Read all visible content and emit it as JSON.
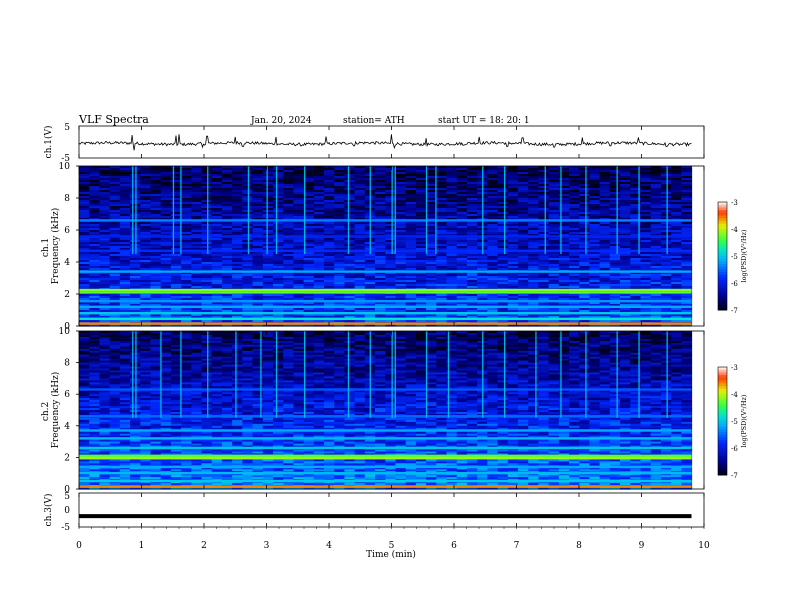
{
  "header": {
    "title": "VLF  Spectra",
    "date": "Jan.  20,  2024",
    "station": "station= ATH",
    "start": "start  UT  =    18: 20: 1"
  },
  "chart_data": [
    {
      "type": "line",
      "name": "ch1-waveform",
      "ylabel": "ch.1(V)",
      "ylim": [
        -5,
        5
      ],
      "yticks": [
        "5",
        "-5"
      ],
      "xlim": [
        0,
        10
      ],
      "baseline": -0.5,
      "spikes": [
        [
          0.85,
          2.2
        ],
        [
          0.88,
          -2.6
        ],
        [
          1.55,
          2.0
        ],
        [
          1.6,
          2.4
        ],
        [
          1.98,
          -1.6
        ],
        [
          2.05,
          1.8
        ],
        [
          2.5,
          1.6
        ],
        [
          2.62,
          -1.4
        ],
        [
          3.15,
          1.6
        ],
        [
          3.55,
          -1.2
        ],
        [
          3.95,
          1.7
        ],
        [
          4.4,
          -1.2
        ],
        [
          5.0,
          2.4
        ],
        [
          5.05,
          -1.8
        ],
        [
          5.55,
          1.2
        ],
        [
          6.15,
          -1.0
        ],
        [
          6.4,
          1.6
        ],
        [
          6.85,
          -1.4
        ],
        [
          7.1,
          1.3
        ],
        [
          7.6,
          -1.6
        ],
        [
          8.05,
          1.4
        ],
        [
          8.5,
          -1.2
        ],
        [
          8.95,
          1.4
        ],
        [
          9.4,
          -1.4
        ]
      ]
    },
    {
      "type": "heatmap",
      "name": "ch1-spectrogram",
      "ylabel": "ch.1\nFrequency  (kHz)",
      "ylim": [
        0,
        10
      ],
      "yticks": [
        "10",
        "8",
        "6",
        "4",
        "2",
        "0"
      ],
      "xlim": [
        0,
        9.8
      ],
      "colorbar": {
        "label": "log(PSD)(V²/Hz)",
        "ticks": [
          "-3",
          "-4",
          "-5",
          "-6",
          "-7"
        ],
        "range": [
          -7,
          -3
        ]
      },
      "bands": [
        {
          "f": 0.15,
          "level": -3.6
        },
        {
          "f": 0.45,
          "level": -4.8
        },
        {
          "f": 0.8,
          "level": -5.0
        },
        {
          "f": 1.2,
          "level": -5.2
        },
        {
          "f": 1.55,
          "level": -5.3
        },
        {
          "f": 2.1,
          "level": -4.3
        },
        {
          "f": 2.25,
          "level": -4.2
        },
        {
          "f": 3.4,
          "level": -5.2
        },
        {
          "f": 4.7,
          "level": -5.8
        },
        {
          "f": 5.6,
          "level": -5.9
        },
        {
          "f": 6.6,
          "level": -5.4
        }
      ],
      "background": {
        "low_freq_level": -5.7,
        "high_freq_level": -6.7
      },
      "sferic_times": [
        0.85,
        0.9,
        1.5,
        1.62,
        2.05,
        2.7,
        3.0,
        3.15,
        3.6,
        4.3,
        4.65,
        5.0,
        5.05,
        5.55,
        5.7,
        6.45,
        6.8,
        7.45,
        7.7,
        8.1,
        8.6,
        8.95,
        9.4
      ]
    },
    {
      "type": "heatmap",
      "name": "ch2-spectrogram",
      "ylabel": "ch.2\nFrequency  (kHz)",
      "ylim": [
        0,
        10
      ],
      "yticks": [
        "10",
        "8",
        "6",
        "4",
        "2",
        "0"
      ],
      "xlim": [
        0,
        9.8
      ],
      "colorbar": {
        "label": "log(PSD)(V²/Hz)",
        "ticks": [
          "-3",
          "-4",
          "-5",
          "-6",
          "-7"
        ],
        "range": [
          -7,
          -3
        ]
      },
      "bands": [
        {
          "f": 0.15,
          "level": -3.6
        },
        {
          "f": 0.5,
          "level": -5.0
        },
        {
          "f": 1.0,
          "level": -5.1
        },
        {
          "f": 1.4,
          "level": -5.2
        },
        {
          "f": 1.95,
          "level": -4.1
        },
        {
          "f": 2.1,
          "level": -4.3
        },
        {
          "f": 2.6,
          "level": -5.0
        },
        {
          "f": 3.2,
          "level": -5.1
        },
        {
          "f": 3.7,
          "level": -5.2
        },
        {
          "f": 4.6,
          "level": -5.5
        },
        {
          "f": 6.3,
          "level": -5.6
        }
      ],
      "background": {
        "low_freq_level": -5.4,
        "high_freq_level": -6.7
      },
      "sferic_times": [
        0.85,
        0.9,
        1.3,
        1.62,
        2.05,
        2.5,
        2.9,
        3.15,
        3.6,
        4.3,
        4.65,
        5.0,
        5.05,
        5.55,
        5.9,
        6.45,
        6.8,
        7.3,
        7.7,
        8.1,
        8.6,
        8.95,
        9.4
      ]
    },
    {
      "type": "line",
      "name": "ch3-waveform",
      "ylabel": "ch.3(V)",
      "ylim": [
        -5,
        5
      ],
      "yticks": [
        "5",
        "0",
        "-5"
      ],
      "xlim": [
        0,
        10
      ],
      "baseline": -1.8
    }
  ],
  "xaxis": {
    "label": "Time  (min)",
    "ticks": [
      "0",
      "1",
      "2",
      "3",
      "4",
      "5",
      "6",
      "7",
      "8",
      "9",
      "10"
    ],
    "range": [
      0,
      10
    ]
  }
}
